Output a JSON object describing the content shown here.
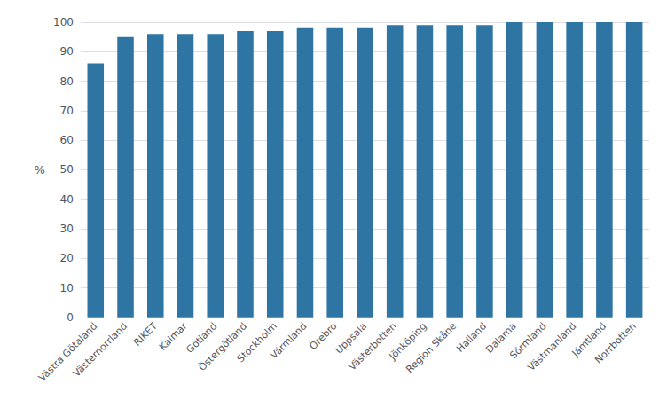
{
  "chart_data": {
    "type": "bar",
    "categories": [
      "Västra Götaland",
      "Västernorrland",
      "RIKET",
      "Kalmar",
      "Gotland",
      "Östergötland",
      "Stockholm",
      "Värmland",
      "Örebro",
      "Uppsala",
      "Västerbotten",
      "Jönköping",
      "Region Skåne",
      "Halland",
      "Dalarna",
      "Sörmland",
      "Västmanland",
      "Jämtland",
      "Norrbotten"
    ],
    "values": [
      86,
      95,
      96,
      96,
      96,
      97,
      97,
      98,
      98,
      98,
      99,
      99,
      99,
      99,
      100,
      100,
      100,
      100,
      100
    ],
    "color": "#2e75a3",
    "ylabel": "%",
    "ylim": [
      0,
      100
    ],
    "yticks": [
      0,
      10,
      20,
      30,
      40,
      50,
      60,
      70,
      80,
      90,
      100
    ],
    "grid": true
  }
}
